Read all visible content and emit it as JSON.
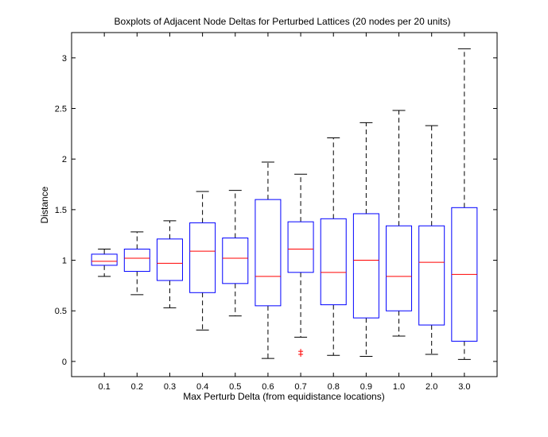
{
  "chart_data": {
    "type": "boxplot",
    "title": "Boxplots of Adjacent Node Deltas for Perturbed Lattices (20 nodes per 20 units)",
    "xlabel": "Max Perturb Delta (from equidistance locations)",
    "ylabel": "Distance",
    "ylim": [
      -0.15,
      3.25
    ],
    "yticks": [
      "0",
      "0.5",
      "1",
      "1.5",
      "2",
      "2.5",
      "3"
    ],
    "ytick_values": [
      0,
      0.5,
      1,
      1.5,
      2,
      2.5,
      3
    ],
    "categories": [
      "0.1",
      "0.2",
      "0.3",
      "0.4",
      "0.5",
      "0.6",
      "0.7",
      "0.8",
      "0.9",
      "1.0",
      "2.0",
      "3.0"
    ],
    "boxes": [
      {
        "min": 0.84,
        "q1": 0.95,
        "median": 0.99,
        "q3": 1.06,
        "max": 1.11,
        "outliers": []
      },
      {
        "min": 0.66,
        "q1": 0.89,
        "median": 1.02,
        "q3": 1.11,
        "max": 1.28,
        "outliers": []
      },
      {
        "min": 0.53,
        "q1": 0.8,
        "median": 0.97,
        "q3": 1.21,
        "max": 1.39,
        "outliers": []
      },
      {
        "min": 0.31,
        "q1": 0.68,
        "median": 1.09,
        "q3": 1.37,
        "max": 1.68,
        "outliers": []
      },
      {
        "min": 0.45,
        "q1": 0.77,
        "median": 1.02,
        "q3": 1.22,
        "max": 1.69,
        "outliers": []
      },
      {
        "min": 0.03,
        "q1": 0.55,
        "median": 0.84,
        "q3": 1.6,
        "max": 1.97,
        "outliers": []
      },
      {
        "min": 0.24,
        "q1": 0.88,
        "median": 1.11,
        "q3": 1.38,
        "max": 1.85,
        "outliers": [
          0.07,
          0.1
        ]
      },
      {
        "min": 0.06,
        "q1": 0.56,
        "median": 0.88,
        "q3": 1.41,
        "max": 2.21,
        "outliers": []
      },
      {
        "min": 0.05,
        "q1": 0.43,
        "median": 1.0,
        "q3": 1.46,
        "max": 2.36,
        "outliers": []
      },
      {
        "min": 0.25,
        "q1": 0.5,
        "median": 0.84,
        "q3": 1.34,
        "max": 2.48,
        "outliers": []
      },
      {
        "min": 0.07,
        "q1": 0.36,
        "median": 0.98,
        "q3": 1.34,
        "max": 2.33,
        "outliers": []
      },
      {
        "min": 0.02,
        "q1": 0.2,
        "median": 0.86,
        "q3": 1.52,
        "max": 3.09,
        "outliers": []
      }
    ],
    "grid": false,
    "colors": {
      "box": "#0000ff",
      "median": "#ff0000",
      "whisker": "#000000",
      "outlier": "#ff0000",
      "axes": "#000000"
    }
  }
}
